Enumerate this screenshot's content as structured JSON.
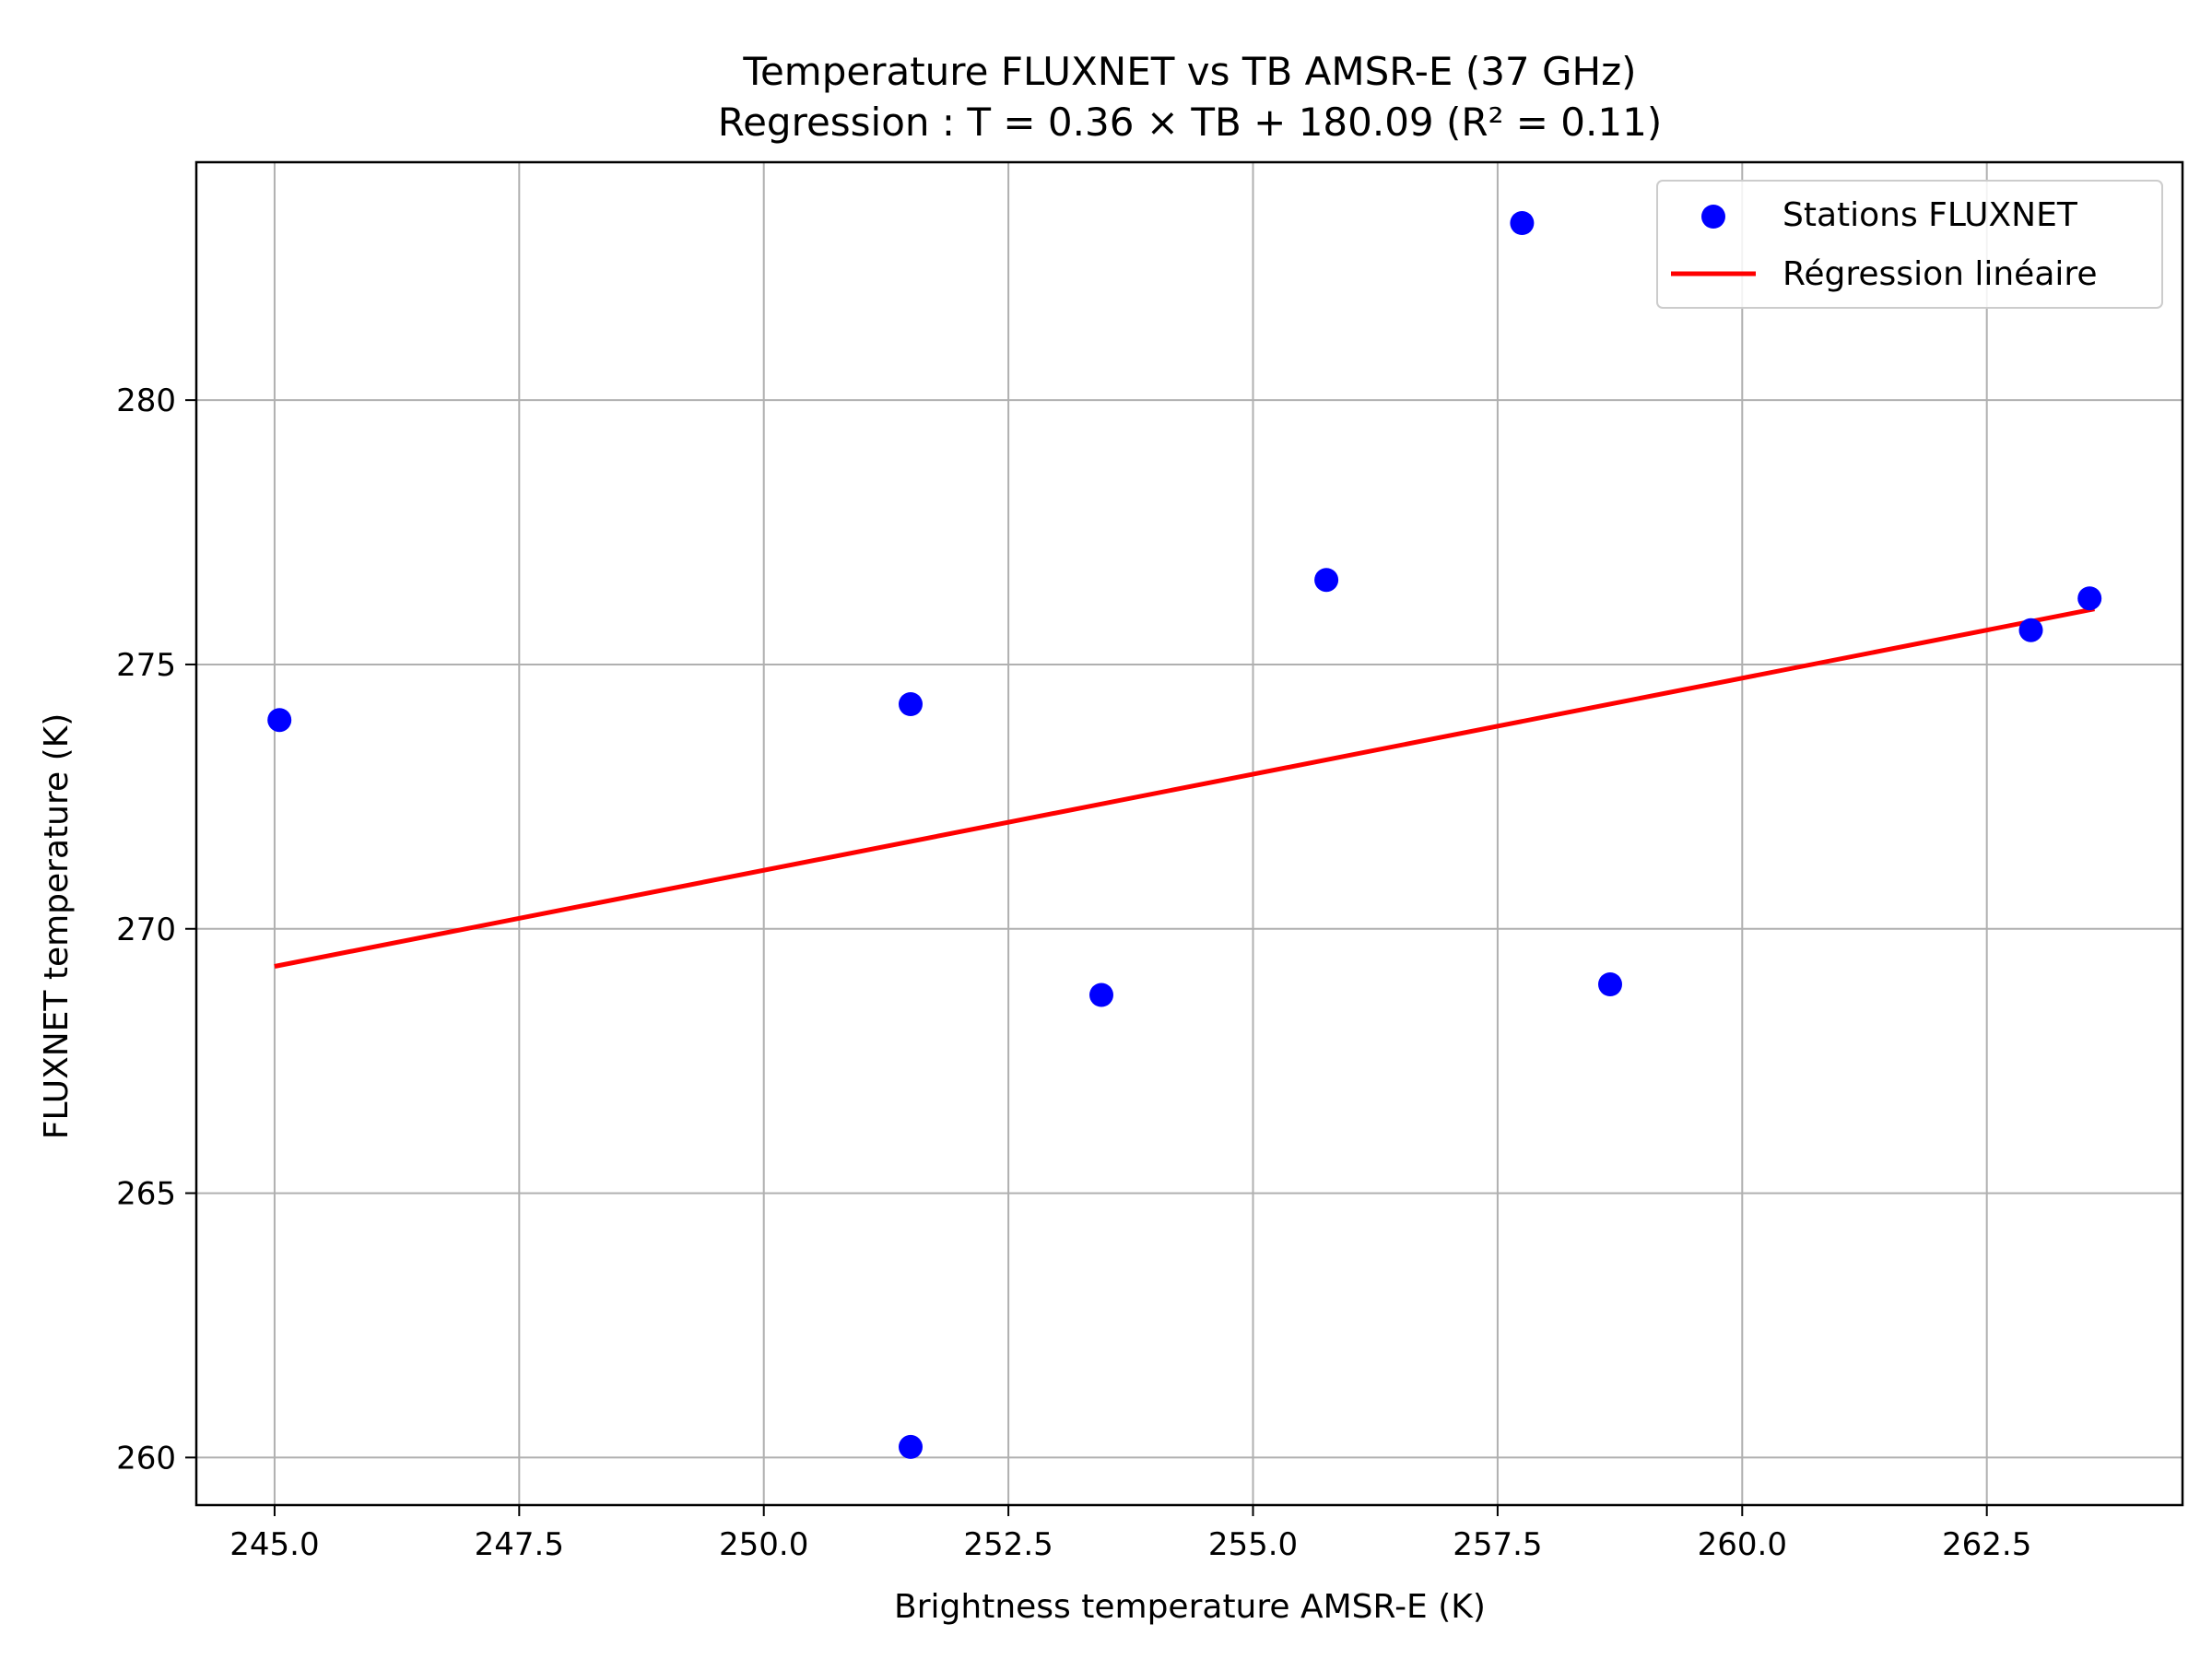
{
  "chart_data": {
    "type": "scatter",
    "title": "Temperature FLUXNET vs TB AMSR-E (37 GHz)",
    "subtitle": "Regression : T = 0.36 × TB + 180.09 (R² = 0.11)",
    "xlabel": "Brightness temperature AMSR-E (K)",
    "ylabel": "FLUXNET temperature (K)",
    "xlim": [
      244.2,
      264.5
    ],
    "ylim": [
      259.1,
      284.5
    ],
    "xticks": [
      245.0,
      247.5,
      250.0,
      252.5,
      255.0,
      257.5,
      260.0,
      262.5
    ],
    "xtick_labels": [
      "245.0",
      "247.5",
      "250.0",
      "252.5",
      "255.0",
      "257.5",
      "260.0",
      "262.5"
    ],
    "yticks": [
      260,
      265,
      270,
      275,
      280
    ],
    "ytick_labels": [
      "260",
      "265",
      "270",
      "275",
      "280"
    ],
    "grid": true,
    "legend_position": "top-right",
    "series": [
      {
        "name": "Stations FLUXNET",
        "kind": "scatter",
        "color": "#0000ff",
        "points": [
          {
            "x": 245.05,
            "y": 273.95
          },
          {
            "x": 251.5,
            "y": 274.25
          },
          {
            "x": 251.5,
            "y": 260.2
          },
          {
            "x": 253.45,
            "y": 268.75
          },
          {
            "x": 255.75,
            "y": 276.6
          },
          {
            "x": 257.75,
            "y": 283.35
          },
          {
            "x": 258.65,
            "y": 268.95
          },
          {
            "x": 262.95,
            "y": 275.65
          },
          {
            "x": 263.55,
            "y": 276.25
          }
        ]
      },
      {
        "name": "Régression linéaire",
        "kind": "line",
        "color": "#ff0000",
        "points": [
          {
            "x": 245.0,
            "y": 269.29
          },
          {
            "x": 263.6,
            "y": 276.05
          }
        ]
      }
    ]
  }
}
